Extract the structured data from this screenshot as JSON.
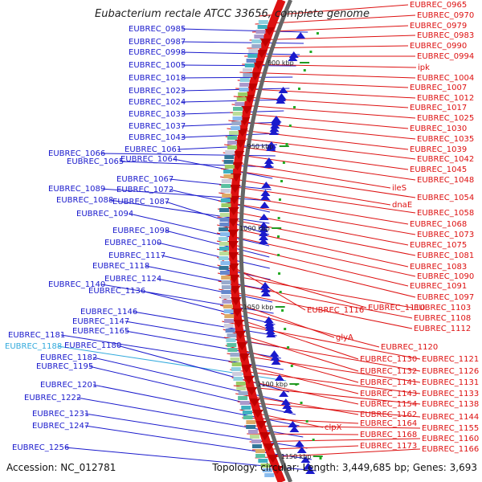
{
  "title": "Eubacterium rectale ATCC 33656, complete genome",
  "footer": {
    "accession_label": "Accession:",
    "accession": "NC_012781",
    "topology_label": "Topology:",
    "topology": "circular",
    "length_label": "Length:",
    "length": "3,449,685 bp",
    "genes_label": "Genes:",
    "genes": "3,693"
  },
  "colors": {
    "plus_strand": "#1a1acc",
    "minus_strand": "#dd1111",
    "highlight": "#33aadd",
    "backbone": "#666666",
    "kbp_tick": "#229922"
  },
  "kbp_ticks": [
    "900 kbp",
    "950 kbp",
    "1000 kbp",
    "1050 kbp",
    "1100 kbp",
    "1150 kbp"
  ],
  "left_labels": [
    {
      "text": "EUBREC_0985"
    },
    {
      "text": "EUBREC_0987"
    },
    {
      "text": "EUBREC_0998"
    },
    {
      "text": "EUBREC_1005"
    },
    {
      "text": "EUBREC_1018"
    },
    {
      "text": "EUBREC_1023"
    },
    {
      "text": "EUBREC_1024"
    },
    {
      "text": "EUBREC_1033"
    },
    {
      "text": "EUBREC_1037"
    },
    {
      "text": "EUBREC_1043"
    },
    {
      "text": "EUBREC_1061"
    },
    {
      "text": "EUBREC_1066"
    },
    {
      "text": "EUBREC_1065"
    },
    {
      "text": "EUBREC_1064"
    },
    {
      "text": "EUBREC_1067"
    },
    {
      "text": "EUBREC_1089"
    },
    {
      "text": "EUBREC_1072"
    },
    {
      "text": "EUBREC_1088"
    },
    {
      "text": "EUBREC_1087"
    },
    {
      "text": "EUBREC_1094"
    },
    {
      "text": "EUBREC_1098"
    },
    {
      "text": "EUBREC_1100"
    },
    {
      "text": "EUBREC_1117"
    },
    {
      "text": "EUBREC_1118"
    },
    {
      "text": "EUBREC_1124"
    },
    {
      "text": "EUBREC_1140"
    },
    {
      "text": "EUBREC_1136"
    },
    {
      "text": "EUBREC_1146"
    },
    {
      "text": "EUBREC_1147"
    },
    {
      "text": "EUBREC_1165"
    },
    {
      "text": "EUBREC_1181"
    },
    {
      "text": "EUBREC_1188",
      "highlight": true
    },
    {
      "text": "EUBREC_1180"
    },
    {
      "text": "EUBREC_1182"
    },
    {
      "text": "EUBREC_1195"
    },
    {
      "text": "EUBREC_1201"
    },
    {
      "text": "EUBREC_1222"
    },
    {
      "text": "EUBREC_1231"
    },
    {
      "text": "EUBREC_1247"
    },
    {
      "text": "EUBREC_1256"
    }
  ],
  "right_labels": [
    {
      "text": "EUBREC_0965"
    },
    {
      "text": "EUBREC_0970"
    },
    {
      "text": "EUBREC_0979"
    },
    {
      "text": "EUBREC_0983"
    },
    {
      "text": "EUBREC_0990"
    },
    {
      "text": "EUBREC_0994"
    },
    {
      "text": "ipk"
    },
    {
      "text": "EUBREC_1004"
    },
    {
      "text": "EUBREC_1007"
    },
    {
      "text": "EUBREC_1012"
    },
    {
      "text": "EUBREC_1017"
    },
    {
      "text": "EUBREC_1025"
    },
    {
      "text": "EUBREC_1030"
    },
    {
      "text": "EUBREC_1035"
    },
    {
      "text": "EUBREC_1039"
    },
    {
      "text": "EUBREC_1042"
    },
    {
      "text": "EUBREC_1045"
    },
    {
      "text": "EUBREC_1048"
    },
    {
      "text": "ileS"
    },
    {
      "text": "EUBREC_1054"
    },
    {
      "text": "dnaE"
    },
    {
      "text": "EUBREC_1058"
    },
    {
      "text": "EUBREC_1068"
    },
    {
      "text": "EUBREC_1073"
    },
    {
      "text": "EUBREC_1075"
    },
    {
      "text": "EUBREC_1081"
    },
    {
      "text": "EUBREC_1083"
    },
    {
      "text": "EUBREC_1090"
    },
    {
      "text": "EUBREC_1091"
    },
    {
      "text": "EUBREC_1097"
    },
    {
      "text": "EUBREC_1116"
    },
    {
      "text": "EUBREC_1110"
    },
    {
      "text": "EUBREC_1103"
    },
    {
      "text": "EUBREC_1108"
    },
    {
      "text": "EUBREC_1112"
    },
    {
      "text": "glyA"
    },
    {
      "text": "EUBREC_1120"
    },
    {
      "text": "EUBREC_1130"
    },
    {
      "text": "EUBREC_1121"
    },
    {
      "text": "EUBREC_1132"
    },
    {
      "text": "EUBREC_1126"
    },
    {
      "text": "EUBREC_1141"
    },
    {
      "text": "EUBREC_1131"
    },
    {
      "text": "EUBREC_1143"
    },
    {
      "text": "EUBREC_1133"
    },
    {
      "text": "EUBREC_1154"
    },
    {
      "text": "EUBREC_1138"
    },
    {
      "text": "EUBREC_1162"
    },
    {
      "text": "EUBREC_1144"
    },
    {
      "text": "clpX"
    },
    {
      "text": "EUBREC_1164"
    },
    {
      "text": "EUBREC_1155"
    },
    {
      "text": "EUBREC_1168"
    },
    {
      "text": "EUBREC_1160"
    },
    {
      "text": "EUBREC_1173"
    },
    {
      "text": "EUBREC_1166"
    }
  ]
}
